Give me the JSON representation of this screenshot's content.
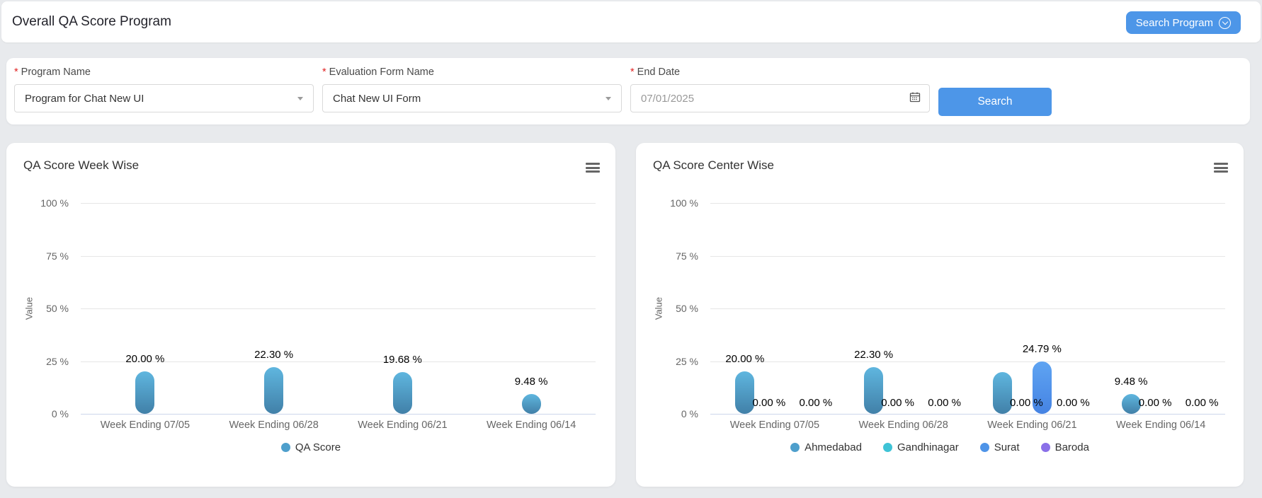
{
  "header": {
    "title": "Overall QA Score Program",
    "search_program_label": "Search Program"
  },
  "filters": {
    "program_name": {
      "label": "Program Name",
      "required": "*",
      "value": "Program for Chat New UI"
    },
    "evaluation_form": {
      "label": "Evaluation Form Name",
      "required": "*",
      "value": "Chat New UI Form"
    },
    "end_date": {
      "label": "End Date",
      "required": "*",
      "value": "07/01/2025"
    },
    "search_label": "Search"
  },
  "colors": {
    "accent_blue": "#4d96e8",
    "grid": "#e6e6e6",
    "axis_line": "#ccd6eb"
  },
  "chart_data": [
    {
      "type": "bar",
      "title": "QA Score Week Wise",
      "ylabel": "Value",
      "ylim": [
        0,
        100
      ],
      "ytick_labels": [
        "0 %",
        "25 %",
        "50 %",
        "75 %",
        "100 %"
      ],
      "grid": true,
      "legend_position": "bottom",
      "categories": [
        "Week Ending 07/05",
        "Week Ending 06/28",
        "Week Ending 06/21",
        "Week Ending 06/14"
      ],
      "series": [
        {
          "name": "QA Score",
          "color": "#4e9fcc",
          "gradient": [
            "#5fb6df",
            "#4180a8"
          ],
          "values": [
            20.0,
            22.3,
            19.68,
            9.48
          ],
          "labels": [
            "20.00 %",
            "22.30 %",
            "19.68 %",
            "9.48 %"
          ]
        }
      ]
    },
    {
      "type": "bar",
      "title": "QA Score Center Wise",
      "ylabel": "Value",
      "ylim": [
        0,
        100
      ],
      "ytick_labels": [
        "0 %",
        "25 %",
        "50 %",
        "75 %",
        "100 %"
      ],
      "grid": true,
      "legend_position": "bottom",
      "categories": [
        "Week Ending 07/05",
        "Week Ending 06/28",
        "Week Ending 06/21",
        "Week Ending 06/14"
      ],
      "series": [
        {
          "name": "Ahmedabad",
          "color": "#4e9fcc",
          "gradient": [
            "#5fb6df",
            "#4180a8"
          ],
          "values": [
            20.0,
            22.3,
            19.68,
            9.48
          ],
          "labels": [
            "20.00 %",
            "22.30 %",
            null,
            "9.48 %"
          ]
        },
        {
          "name": "Gandhinagar",
          "color": "#3ec3d6",
          "gradient": [
            "#3ec3d6",
            "#2ea4b8"
          ],
          "values": [
            0,
            0,
            0,
            0
          ],
          "labels": [
            "0.00 %",
            "0.00 %",
            "0.00 %",
            "0.00 %"
          ]
        },
        {
          "name": "Surat",
          "color": "#4e94e8",
          "gradient": [
            "#5fa4f2",
            "#4583e3"
          ],
          "values": [
            0,
            0,
            24.79,
            0
          ],
          "labels": [
            "0.00 %",
            "0.00 %",
            "24.79 %",
            "0.00 %"
          ]
        },
        {
          "name": "Baroda",
          "color": "#8a70e8",
          "gradient": [
            "#9a82ee",
            "#7a5fe0"
          ],
          "values": [
            0,
            0,
            0,
            0
          ],
          "labels": [
            null,
            null,
            "0.00 %",
            null
          ]
        }
      ]
    }
  ]
}
